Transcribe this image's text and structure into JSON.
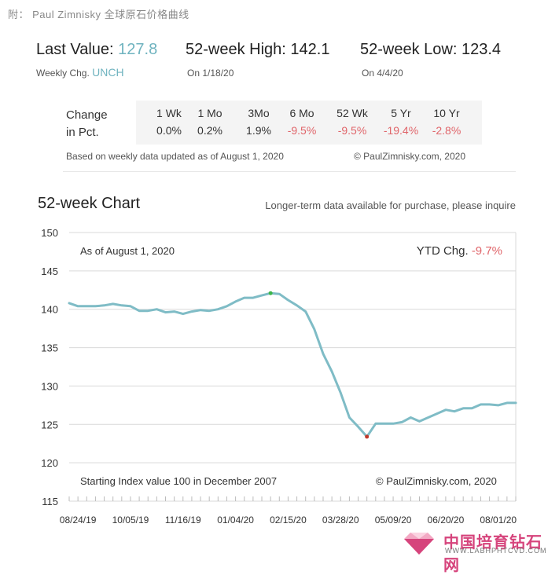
{
  "caption": "附： Paul Zimnisky 全球原石价格曲线",
  "stats": {
    "last_value_label": "Last Value:",
    "last_value": "127.8",
    "weekly_chg_label": "Weekly Chg.",
    "weekly_chg": "UNCH",
    "high_label": "52-week High:",
    "high_value": "142.1",
    "high_date": "On 1/18/20",
    "low_label": "52-week Low:",
    "low_value": "123.4",
    "low_date": "On 4/4/20"
  },
  "change_table": {
    "label_line1": "Change",
    "label_line2": "in Pct.",
    "columns": [
      {
        "header": "1 Wk",
        "value": "0.0%"
      },
      {
        "header": "1 Mo",
        "value": "0.2%"
      },
      {
        "header": "3Mo",
        "value": "1.9%"
      },
      {
        "header": "6 Mo",
        "value": "-9.5%"
      },
      {
        "header": "52 Wk",
        "value": "-9.5%"
      },
      {
        "header": "5 Yr",
        "value": "-19.4%"
      },
      {
        "header": "10 Yr",
        "value": "-2.8%"
      }
    ],
    "positive_color": "#333333",
    "negative_color": "#e0656a"
  },
  "notes": {
    "based_on": "Based on weekly data updated as of August 1, 2020",
    "copyright": "© PaulZimnisky.com, 2020"
  },
  "chart_header": {
    "title": "52-week Chart",
    "note": "Longer-term data available for purchase, please inquire"
  },
  "chart_data": {
    "type": "line",
    "title": "52-week Chart",
    "ylim": [
      115,
      150
    ],
    "yticks": [
      115,
      120,
      125,
      130,
      135,
      140,
      145,
      150
    ],
    "xtick_labels": [
      "08/24/19",
      "10/05/19",
      "11/16/19",
      "01/04/20",
      "02/15/20",
      "03/28/20",
      "05/09/20",
      "06/20/20",
      "08/01/20"
    ],
    "grid": true,
    "series": [
      {
        "color": "#7fbcc6",
        "values": [
          140.8,
          140.4,
          140.4,
          140.4,
          140.5,
          140.7,
          140.5,
          140.4,
          139.8,
          139.8,
          140.0,
          139.6,
          139.7,
          139.4,
          139.7,
          139.9,
          139.8,
          140.0,
          140.4,
          141.0,
          141.5,
          141.5,
          141.8,
          142.1,
          142.0,
          141.2,
          140.5,
          139.7,
          137.4,
          134.2,
          131.9,
          129.1,
          125.9,
          124.7,
          123.4,
          125.1,
          125.1,
          125.1,
          125.3,
          125.9,
          125.4,
          125.9,
          126.4,
          126.9,
          126.7,
          127.1,
          127.1,
          127.6,
          127.6,
          127.5,
          127.8,
          127.8
        ]
      }
    ],
    "high_point": {
      "index": 23,
      "value": 142.1,
      "color": "#3cb54a"
    },
    "low_point": {
      "index": 34,
      "value": 123.4,
      "color": "#c0392b"
    },
    "annotations": {
      "as_of": "As of August 1, 2020",
      "ytd_label": "YTD Chg.",
      "ytd_value": "-9.7%",
      "starting_index": "Starting Index value 100 in December 2007",
      "copyright": "© PaulZimnisky.com, 2020"
    }
  },
  "watermark": {
    "chinese": "中国培育钻石网",
    "english": "WWW.LABHPHTCVD.COM"
  }
}
